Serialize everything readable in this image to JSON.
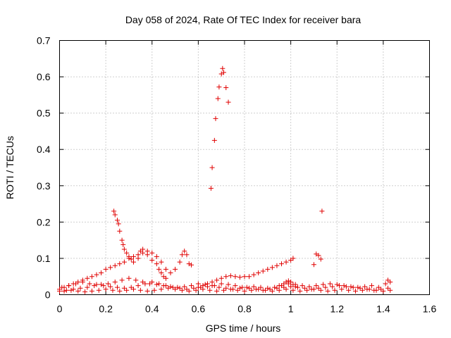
{
  "chart_data": {
    "type": "scatter",
    "title": "Day 058 of 2024, Rate Of TEC Index for receiver bara",
    "xlabel": "GPS time / hours",
    "ylabel": "ROTI / TECUs",
    "xlim": [
      0,
      1.6
    ],
    "ylim": [
      0,
      0.7
    ],
    "xticks": [
      "0",
      "0.2",
      "0.4",
      "0.6",
      "0.8",
      "1",
      "1.2",
      "1.4",
      "1.6"
    ],
    "yticks": [
      "0",
      "0.1",
      "0.2",
      "0.3",
      "0.4",
      "0.5",
      "0.6",
      "0.7"
    ],
    "grid": true,
    "marker": "+",
    "color": "#e00000",
    "series": [
      {
        "points": [
          [
            0.0,
            0.015
          ],
          [
            0.02,
            0.02
          ],
          [
            0.04,
            0.025
          ],
          [
            0.06,
            0.03
          ],
          [
            0.08,
            0.035
          ],
          [
            0.1,
            0.04
          ],
          [
            0.12,
            0.045
          ],
          [
            0.14,
            0.05
          ],
          [
            0.16,
            0.055
          ],
          [
            0.18,
            0.06
          ],
          [
            0.2,
            0.07
          ],
          [
            0.22,
            0.075
          ],
          [
            0.24,
            0.08
          ],
          [
            0.26,
            0.085
          ],
          [
            0.28,
            0.09
          ],
          [
            0.3,
            0.1
          ],
          [
            0.32,
            0.105
          ],
          [
            0.34,
            0.11
          ],
          [
            0.36,
            0.115
          ],
          [
            0.38,
            0.12
          ],
          [
            0.4,
            0.115
          ],
          [
            0.42,
            0.105
          ],
          [
            0.44,
            0.09
          ],
          [
            0.46,
            0.07
          ],
          [
            0.48,
            0.06
          ],
          [
            0.5,
            0.07
          ],
          [
            0.52,
            0.09
          ],
          [
            0.53,
            0.11
          ],
          [
            0.54,
            0.12
          ],
          [
            0.55,
            0.11
          ],
          [
            0.56,
            0.085
          ],
          [
            0.57,
            0.082
          ]
        ]
      },
      {
        "points": [
          [
            0.235,
            0.23
          ],
          [
            0.24,
            0.22
          ],
          [
            0.25,
            0.205
          ],
          [
            0.255,
            0.195
          ],
          [
            0.26,
            0.175
          ],
          [
            0.27,
            0.15
          ],
          [
            0.275,
            0.138
          ],
          [
            0.28,
            0.125
          ],
          [
            0.29,
            0.115
          ],
          [
            0.3,
            0.105
          ],
          [
            0.31,
            0.098
          ],
          [
            0.32,
            0.09
          ],
          [
            0.34,
            0.1
          ],
          [
            0.35,
            0.12
          ],
          [
            0.36,
            0.125
          ],
          [
            0.38,
            0.11
          ],
          [
            0.4,
            0.095
          ],
          [
            0.42,
            0.085
          ],
          [
            0.43,
            0.07
          ],
          [
            0.44,
            0.06
          ],
          [
            0.45,
            0.05
          ],
          [
            0.46,
            0.045
          ]
        ]
      },
      {
        "points": [
          [
            0.655,
            0.293
          ],
          [
            0.66,
            0.35
          ],
          [
            0.67,
            0.425
          ],
          [
            0.675,
            0.485
          ],
          [
            0.685,
            0.54
          ],
          [
            0.69,
            0.572
          ],
          [
            0.7,
            0.608
          ],
          [
            0.705,
            0.623
          ],
          [
            0.71,
            0.612
          ],
          [
            0.72,
            0.57
          ],
          [
            0.73,
            0.53
          ]
        ]
      },
      {
        "points": [
          [
            0.6,
            0.02
          ],
          [
            0.62,
            0.025
          ],
          [
            0.64,
            0.03
          ],
          [
            0.66,
            0.035
          ],
          [
            0.68,
            0.04
          ],
          [
            0.7,
            0.045
          ],
          [
            0.72,
            0.05
          ],
          [
            0.74,
            0.052
          ],
          [
            0.76,
            0.05
          ],
          [
            0.78,
            0.048
          ],
          [
            0.8,
            0.05
          ],
          [
            0.82,
            0.05
          ],
          [
            0.84,
            0.055
          ],
          [
            0.86,
            0.06
          ],
          [
            0.88,
            0.065
          ],
          [
            0.9,
            0.07
          ],
          [
            0.92,
            0.075
          ],
          [
            0.94,
            0.08
          ],
          [
            0.96,
            0.085
          ],
          [
            0.98,
            0.09
          ],
          [
            1.0,
            0.095
          ],
          [
            1.01,
            0.1
          ]
        ]
      },
      {
        "points": [
          [
            1.1,
            0.083
          ],
          [
            1.11,
            0.112
          ],
          [
            1.12,
            0.108
          ],
          [
            1.13,
            0.098
          ],
          [
            1.135,
            0.23
          ]
        ]
      },
      {
        "points": [
          [
            0.0,
            0.01
          ],
          [
            0.03,
            0.012
          ],
          [
            0.06,
            0.015
          ],
          [
            0.09,
            0.018
          ],
          [
            0.12,
            0.02
          ],
          [
            0.15,
            0.025
          ],
          [
            0.18,
            0.028
          ],
          [
            0.21,
            0.03
          ],
          [
            0.24,
            0.035
          ],
          [
            0.27,
            0.04
          ],
          [
            0.3,
            0.045
          ],
          [
            0.33,
            0.04
          ],
          [
            0.36,
            0.035
          ],
          [
            0.39,
            0.03
          ],
          [
            0.42,
            0.028
          ],
          [
            0.45,
            0.025
          ],
          [
            0.48,
            0.022
          ],
          [
            0.51,
            0.02
          ],
          [
            0.54,
            0.022
          ],
          [
            0.57,
            0.025
          ],
          [
            0.6,
            0.03
          ],
          [
            0.63,
            0.028
          ],
          [
            0.66,
            0.025
          ],
          [
            0.69,
            0.02
          ],
          [
            0.72,
            0.018
          ],
          [
            0.75,
            0.015
          ],
          [
            0.78,
            0.018
          ],
          [
            0.81,
            0.02
          ],
          [
            0.84,
            0.022
          ],
          [
            0.87,
            0.02
          ],
          [
            0.9,
            0.018
          ],
          [
            0.93,
            0.02
          ],
          [
            0.96,
            0.025
          ],
          [
            0.99,
            0.03
          ],
          [
            1.02,
            0.028
          ],
          [
            1.05,
            0.025
          ],
          [
            1.08,
            0.022
          ],
          [
            1.11,
            0.025
          ],
          [
            1.14,
            0.028
          ],
          [
            1.17,
            0.03
          ],
          [
            1.2,
            0.028
          ],
          [
            1.23,
            0.025
          ],
          [
            1.26,
            0.022
          ],
          [
            1.29,
            0.02
          ],
          [
            1.32,
            0.022
          ],
          [
            1.35,
            0.025
          ],
          [
            1.38,
            0.02
          ],
          [
            1.41,
            0.03
          ],
          [
            1.42,
            0.04
          ],
          [
            1.43,
            0.035
          ]
        ]
      },
      {
        "points": [
          [
            0.01,
            0.02
          ],
          [
            0.04,
            0.025
          ],
          [
            0.07,
            0.03
          ],
          [
            0.1,
            0.035
          ],
          [
            0.13,
            0.03
          ],
          [
            0.16,
            0.028
          ],
          [
            0.19,
            0.025
          ],
          [
            0.22,
            0.022
          ],
          [
            0.25,
            0.02
          ],
          [
            0.28,
            0.018
          ],
          [
            0.31,
            0.02
          ],
          [
            0.34,
            0.025
          ],
          [
            0.37,
            0.03
          ],
          [
            0.4,
            0.035
          ],
          [
            0.43,
            0.03
          ],
          [
            0.46,
            0.025
          ],
          [
            0.49,
            0.02
          ],
          [
            0.52,
            0.018
          ],
          [
            0.55,
            0.015
          ],
          [
            0.58,
            0.018
          ],
          [
            0.61,
            0.02
          ],
          [
            0.64,
            0.022
          ],
          [
            0.67,
            0.025
          ],
          [
            0.7,
            0.03
          ],
          [
            0.73,
            0.028
          ],
          [
            0.76,
            0.025
          ],
          [
            0.79,
            0.02
          ],
          [
            0.82,
            0.018
          ],
          [
            0.85,
            0.015
          ],
          [
            0.88,
            0.012
          ],
          [
            0.91,
            0.015
          ],
          [
            0.94,
            0.018
          ],
          [
            0.97,
            0.02
          ],
          [
            1.0,
            0.022
          ],
          [
            1.03,
            0.02
          ],
          [
            1.06,
            0.018
          ],
          [
            1.09,
            0.015
          ],
          [
            1.12,
            0.018
          ],
          [
            1.15,
            0.02
          ],
          [
            1.18,
            0.022
          ],
          [
            1.21,
            0.025
          ],
          [
            1.24,
            0.022
          ],
          [
            1.27,
            0.02
          ],
          [
            1.3,
            0.018
          ],
          [
            1.33,
            0.015
          ],
          [
            1.36,
            0.012
          ],
          [
            1.39,
            0.015
          ],
          [
            1.42,
            0.018
          ]
        ]
      },
      {
        "points": [
          [
            0.02,
            0.01
          ],
          [
            0.05,
            0.012
          ],
          [
            0.08,
            0.01
          ],
          [
            0.11,
            0.008
          ],
          [
            0.14,
            0.01
          ],
          [
            0.17,
            0.012
          ],
          [
            0.2,
            0.015
          ],
          [
            0.23,
            0.012
          ],
          [
            0.26,
            0.01
          ],
          [
            0.29,
            0.012
          ],
          [
            0.32,
            0.015
          ],
          [
            0.35,
            0.012
          ],
          [
            0.38,
            0.01
          ],
          [
            0.41,
            0.012
          ],
          [
            0.44,
            0.015
          ],
          [
            0.47,
            0.018
          ],
          [
            0.5,
            0.015
          ],
          [
            0.53,
            0.012
          ],
          [
            0.56,
            0.01
          ],
          [
            0.59,
            0.012
          ],
          [
            0.62,
            0.015
          ],
          [
            0.65,
            0.012
          ],
          [
            0.68,
            0.01
          ],
          [
            0.71,
            0.012
          ],
          [
            0.74,
            0.015
          ],
          [
            0.77,
            0.012
          ],
          [
            0.8,
            0.01
          ],
          [
            0.83,
            0.012
          ],
          [
            0.86,
            0.015
          ],
          [
            0.89,
            0.012
          ],
          [
            0.92,
            0.01
          ],
          [
            0.95,
            0.012
          ],
          [
            0.98,
            0.015
          ],
          [
            1.01,
            0.012
          ],
          [
            1.04,
            0.01
          ],
          [
            1.07,
            0.012
          ],
          [
            1.1,
            0.015
          ],
          [
            1.13,
            0.012
          ],
          [
            1.16,
            0.01
          ],
          [
            1.19,
            0.012
          ],
          [
            1.22,
            0.015
          ],
          [
            1.25,
            0.012
          ],
          [
            1.28,
            0.01
          ],
          [
            1.31,
            0.012
          ],
          [
            1.34,
            0.015
          ],
          [
            1.37,
            0.012
          ],
          [
            1.4,
            0.01
          ],
          [
            1.43,
            0.012
          ]
        ]
      },
      {
        "points": [
          [
            0.95,
            0.025
          ],
          [
            0.97,
            0.03
          ],
          [
            0.98,
            0.035
          ],
          [
            0.99,
            0.038
          ],
          [
            1.0,
            0.035
          ],
          [
            1.01,
            0.028
          ],
          [
            1.02,
            0.022
          ]
        ]
      }
    ]
  }
}
